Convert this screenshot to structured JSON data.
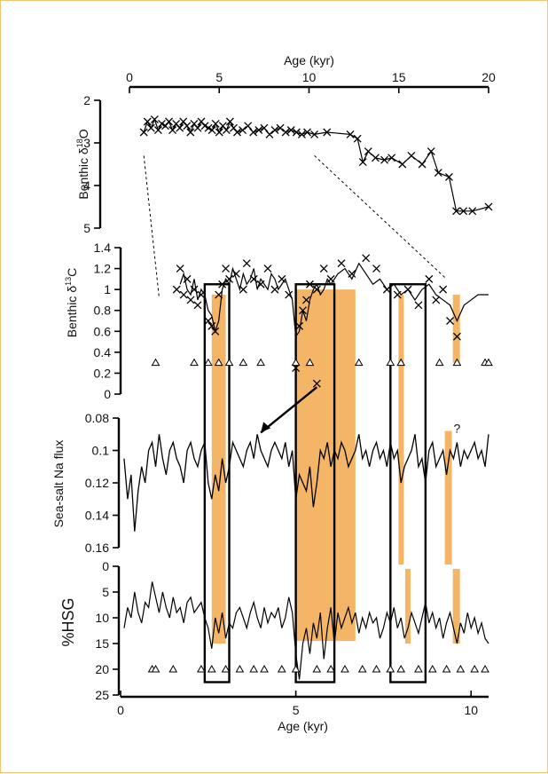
{
  "chart_data": [
    {
      "type": "line",
      "panel": "benthic-d18O",
      "xlabel": "Age (kyr)",
      "xlim": [
        0,
        20
      ],
      "xticks": [
        "0",
        "5",
        "10",
        "15",
        "20"
      ],
      "ylabel_parts": [
        "Benthic δ",
        "18",
        "O"
      ],
      "ylim": [
        2,
        5
      ],
      "yreversed": true,
      "yticks": [
        "2",
        "3",
        "4",
        "5"
      ],
      "marker": "x",
      "x": [
        0.8,
        1.0,
        1.2,
        1.4,
        1.6,
        1.8,
        2.0,
        2.2,
        2.4,
        2.6,
        2.8,
        3.0,
        3.2,
        3.4,
        3.6,
        3.8,
        4.0,
        4.2,
        4.4,
        4.6,
        4.8,
        5.0,
        5.2,
        5.4,
        5.6,
        5.8,
        6.0,
        6.3,
        6.6,
        6.9,
        7.2,
        7.5,
        7.8,
        8.1,
        8.4,
        8.7,
        9.0,
        9.3,
        9.6,
        9.9,
        10.3,
        11.0,
        12.3,
        12.7,
        13.0,
        13.3,
        13.7,
        14.2,
        14.6,
        15.2,
        15.7,
        16.3,
        16.8,
        17.2,
        17.8,
        18.2,
        18.6,
        19.1,
        20.0
      ],
      "y": [
        2.75,
        2.5,
        2.65,
        2.45,
        2.7,
        2.55,
        2.6,
        2.5,
        2.7,
        2.55,
        2.65,
        2.5,
        2.6,
        2.75,
        2.55,
        2.65,
        2.5,
        2.6,
        2.65,
        2.7,
        2.55,
        2.75,
        2.6,
        2.7,
        2.5,
        2.65,
        2.75,
        2.7,
        2.6,
        2.75,
        2.7,
        2.65,
        2.8,
        2.7,
        2.65,
        2.75,
        2.7,
        2.75,
        2.8,
        2.75,
        2.8,
        2.75,
        2.8,
        2.9,
        3.45,
        3.2,
        3.35,
        3.4,
        3.35,
        3.5,
        3.3,
        3.5,
        3.2,
        3.7,
        3.8,
        4.6,
        4.6,
        4.6,
        4.5
      ]
    },
    {
      "type": "scatter",
      "panel": "benthic-d13C",
      "ylabel_parts": [
        "Benthic δ",
        "13",
        "C"
      ],
      "ylim": [
        0,
        1.4
      ],
      "yticks": [
        "0",
        "0.2",
        "0.4",
        "0.6",
        "0.8",
        "1",
        "1.2",
        "1.4"
      ],
      "marker": "x",
      "line_x": [
        1.7,
        1.8,
        1.9,
        2.0,
        2.1,
        2.2,
        2.3,
        2.4,
        2.5,
        2.6,
        2.7,
        2.8,
        2.9,
        3.0,
        3.1,
        3.2,
        3.3,
        3.4,
        3.5,
        3.6,
        3.7,
        3.8,
        3.9,
        4.0,
        4.1,
        4.2,
        4.3,
        4.4,
        4.5,
        4.6,
        4.7,
        4.8,
        4.9,
        5.0,
        5.1,
        5.2,
        5.3,
        5.4,
        5.5,
        5.6,
        5.7,
        5.8,
        5.9,
        6.0,
        6.2,
        6.4,
        6.6,
        6.8,
        7.0,
        7.2,
        7.4,
        7.6,
        7.8,
        8.0,
        8.2,
        8.4,
        8.6,
        8.8,
        9.0,
        9.2,
        9.4,
        9.6,
        9.8,
        10.0,
        10.2,
        10.5
      ],
      "line_y": [
        1.05,
        1.15,
        1.0,
        0.95,
        1.1,
        0.9,
        1.0,
        0.95,
        0.8,
        0.75,
        0.6,
        0.7,
        1.0,
        1.1,
        1.05,
        1.2,
        1.1,
        1.0,
        1.15,
        1.05,
        1.1,
        1.2,
        1.0,
        1.1,
        1.05,
        1.0,
        1.15,
        1.1,
        1.0,
        1.05,
        1.1,
        1.0,
        0.9,
        0.55,
        0.6,
        0.8,
        0.7,
        0.9,
        1.0,
        1.05,
        0.95,
        1.0,
        1.1,
        1.05,
        1.15,
        1.2,
        1.1,
        1.25,
        1.15,
        1.05,
        1.1,
        1.0,
        1.05,
        0.95,
        1.0,
        0.9,
        1.0,
        1.05,
        0.95,
        0.9,
        0.85,
        0.7,
        0.85,
        0.9,
        0.95,
        0.95
      ],
      "points_x": [
        1.6,
        1.7,
        1.8,
        1.9,
        2.0,
        2.1,
        2.2,
        2.3,
        2.5,
        2.6,
        2.7,
        2.8,
        2.9,
        3.0,
        3.1,
        3.3,
        3.5,
        3.6,
        3.8,
        4.0,
        4.2,
        4.4,
        4.6,
        4.8,
        5.0,
        5.1,
        5.2,
        5.3,
        5.4,
        5.6,
        5.8,
        6.0,
        6.3,
        6.6,
        7.0,
        7.3,
        7.6,
        7.9,
        8.2,
        8.5,
        8.8,
        9.0,
        9.2,
        9.4,
        9.6
      ],
      "points_y": [
        1.0,
        1.2,
        0.95,
        1.1,
        0.9,
        1.0,
        0.85,
        0.95,
        0.7,
        0.65,
        0.6,
        0.95,
        1.05,
        1.2,
        1.1,
        1.15,
        1.0,
        1.25,
        1.1,
        1.05,
        1.2,
        1.0,
        1.1,
        0.95,
        0.25,
        0.65,
        0.8,
        0.9,
        1.05,
        1.0,
        1.2,
        1.1,
        1.25,
        1.15,
        1.3,
        1.2,
        1.0,
        0.95,
        1.0,
        0.85,
        1.1,
        0.9,
        1.0,
        0.7,
        0.55
      ],
      "triangle_y": 0.3,
      "triangle_x": [
        1.0,
        2.1,
        2.5,
        2.8,
        3.1,
        3.5,
        4.0,
        5.0,
        5.4,
        6.8,
        7.7,
        8.0,
        9.1,
        9.6,
        10.4,
        10.5
      ]
    },
    {
      "type": "line",
      "panel": "sea-salt-na-flux",
      "ylabel": "Sea-salt Na flux",
      "ylim": [
        0.08,
        0.16
      ],
      "yreversed": true,
      "yticks": [
        "0.08",
        "0.1",
        "0.12",
        "0.14",
        "0.16"
      ],
      "x": [
        0.1,
        0.2,
        0.3,
        0.4,
        0.5,
        0.6,
        0.7,
        0.8,
        0.9,
        1.0,
        1.1,
        1.2,
        1.3,
        1.4,
        1.5,
        1.6,
        1.7,
        1.8,
        1.9,
        2.0,
        2.1,
        2.2,
        2.3,
        2.4,
        2.5,
        2.6,
        2.7,
        2.8,
        2.9,
        3.0,
        3.1,
        3.2,
        3.3,
        3.4,
        3.5,
        3.6,
        3.7,
        3.8,
        3.9,
        4.0,
        4.1,
        4.2,
        4.3,
        4.4,
        4.5,
        4.6,
        4.7,
        4.8,
        4.9,
        5.0,
        5.1,
        5.2,
        5.3,
        5.4,
        5.5,
        5.6,
        5.7,
        5.8,
        5.9,
        6.0,
        6.1,
        6.2,
        6.3,
        6.4,
        6.5,
        6.6,
        6.7,
        6.8,
        6.9,
        7.0,
        7.1,
        7.2,
        7.3,
        7.4,
        7.5,
        7.6,
        7.7,
        7.8,
        7.9,
        8.0,
        8.1,
        8.2,
        8.3,
        8.4,
        8.5,
        8.6,
        8.7,
        8.8,
        8.9,
        9.0,
        9.1,
        9.2,
        9.3,
        9.4,
        9.5,
        9.6,
        9.7,
        9.8,
        9.9,
        10.0,
        10.1,
        10.2,
        10.3,
        10.4,
        10.5
      ],
      "y": [
        0.105,
        0.13,
        0.115,
        0.15,
        0.125,
        0.11,
        0.12,
        0.1,
        0.095,
        0.11,
        0.09,
        0.105,
        0.115,
        0.1,
        0.095,
        0.105,
        0.11,
        0.12,
        0.1,
        0.095,
        0.105,
        0.11,
        0.1,
        0.095,
        0.12,
        0.13,
        0.115,
        0.125,
        0.105,
        0.12,
        0.11,
        0.095,
        0.1,
        0.105,
        0.11,
        0.1,
        0.095,
        0.105,
        0.09,
        0.1,
        0.105,
        0.11,
        0.1,
        0.095,
        0.1,
        0.105,
        0.095,
        0.11,
        0.1,
        0.13,
        0.115,
        0.12,
        0.125,
        0.11,
        0.135,
        0.12,
        0.1,
        0.105,
        0.095,
        0.11,
        0.1,
        0.105,
        0.095,
        0.1,
        0.11,
        0.105,
        0.1,
        0.09,
        0.105,
        0.1,
        0.11,
        0.1,
        0.095,
        0.105,
        0.1,
        0.11,
        0.095,
        0.105,
        0.1,
        0.12,
        0.11,
        0.105,
        0.1,
        0.09,
        0.11,
        0.105,
        0.12,
        0.1,
        0.095,
        0.11,
        0.105,
        0.1,
        0.115,
        0.1,
        0.105,
        0.095,
        0.11,
        0.1,
        0.105,
        0.1,
        0.095,
        0.105,
        0.1,
        0.11,
        0.09
      ],
      "annotation": "?"
    },
    {
      "type": "line",
      "panel": "hsg",
      "ylabel": "%HSG",
      "ylim": [
        0,
        25
      ],
      "yreversed": true,
      "yticks": [
        "0",
        "5",
        "10",
        "15",
        "20",
        "25"
      ],
      "xlabel": "Age (kyr)",
      "xlim": [
        0,
        10.5
      ],
      "xticks": [
        "0",
        "5",
        "10"
      ],
      "x": [
        0.1,
        0.2,
        0.3,
        0.4,
        0.5,
        0.6,
        0.7,
        0.8,
        0.9,
        1.0,
        1.1,
        1.2,
        1.3,
        1.4,
        1.5,
        1.6,
        1.7,
        1.8,
        1.9,
        2.0,
        2.1,
        2.2,
        2.3,
        2.4,
        2.5,
        2.6,
        2.7,
        2.8,
        2.9,
        3.0,
        3.1,
        3.2,
        3.3,
        3.4,
        3.5,
        3.6,
        3.7,
        3.8,
        3.9,
        4.0,
        4.1,
        4.2,
        4.3,
        4.4,
        4.5,
        4.6,
        4.7,
        4.8,
        4.9,
        5.0,
        5.1,
        5.2,
        5.3,
        5.4,
        5.5,
        5.6,
        5.7,
        5.8,
        5.9,
        6.0,
        6.1,
        6.2,
        6.3,
        6.4,
        6.5,
        6.6,
        6.7,
        6.8,
        6.9,
        7.0,
        7.1,
        7.2,
        7.3,
        7.4,
        7.5,
        7.6,
        7.7,
        7.8,
        7.9,
        8.0,
        8.1,
        8.2,
        8.3,
        8.4,
        8.5,
        8.6,
        8.7,
        8.8,
        8.9,
        9.0,
        9.1,
        9.2,
        9.3,
        9.4,
        9.5,
        9.6,
        9.7,
        9.8,
        9.9,
        10.0,
        10.1,
        10.2,
        10.3,
        10.4,
        10.5
      ],
      "y": [
        12,
        8,
        10,
        5,
        9,
        11,
        7,
        8,
        3,
        6,
        9,
        5,
        8,
        10,
        6,
        9,
        8,
        11,
        7,
        6,
        9,
        8,
        7,
        10,
        12,
        16,
        10,
        13,
        9,
        14,
        11,
        12,
        9,
        8,
        10,
        12,
        9,
        7,
        10,
        12,
        8,
        11,
        9,
        10,
        8,
        12,
        10,
        6,
        9,
        17,
        22,
        15,
        12,
        17,
        11,
        14,
        9,
        18,
        12,
        8,
        15,
        9,
        12,
        10,
        8,
        11,
        9,
        13,
        10,
        12,
        9,
        11,
        10,
        14,
        12,
        9,
        11,
        8,
        12,
        10,
        14,
        12,
        9,
        11,
        13,
        10,
        7,
        11,
        9,
        12,
        10,
        14,
        11,
        9,
        12,
        15,
        11,
        13,
        9,
        12,
        10,
        13,
        11,
        14,
        15
      ],
      "triangle_y": 20,
      "triangle_x": [
        0.9,
        1.0,
        1.5,
        2.3,
        2.6,
        3.0,
        3.4,
        3.8,
        4.1,
        4.6,
        5.0,
        5.6,
        6.0,
        6.4,
        6.9,
        7.3,
        7.7,
        8.0,
        8.5,
        8.9,
        9.3,
        9.7,
        10.1,
        10.4
      ]
    },
    {
      "type": "bar",
      "panel": "shaded-intervals",
      "color": "#f4b566",
      "intervals_kyr": [
        [
          2.6,
          3.0
        ],
        [
          5.0,
          6.7
        ],
        [
          7.9,
          8.1
        ],
        [
          8.1,
          8.25
        ],
        [
          9.25,
          9.5
        ],
        [
          9.45,
          9.65
        ]
      ],
      "boxes_kyr": [
        [
          2.4,
          3.1
        ],
        [
          5.0,
          6.1
        ],
        [
          7.7,
          8.7
        ]
      ]
    }
  ]
}
